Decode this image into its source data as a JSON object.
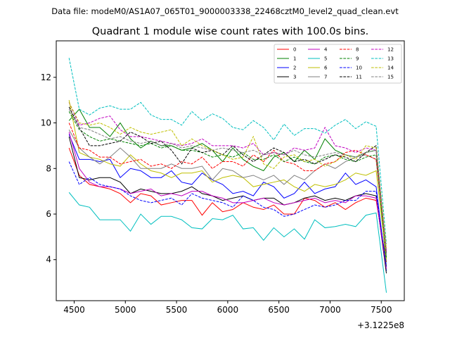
{
  "header": {
    "data_file": "Data file: modeM0/AS1A07_065T01_9000003338_22468cztM0_level2_quad_clean.evt"
  },
  "chart_data": {
    "type": "line",
    "title": "Quadrant 1 module wise count rates with 100.0s bins.",
    "xlabel": "",
    "ylabel": "",
    "offset_label": "+3.1225e8",
    "xlim": [
      4325,
      7725
    ],
    "ylim": [
      2.2,
      13.6
    ],
    "xticks": [
      4500,
      5000,
      5500,
      6000,
      6500,
      7000,
      7500
    ],
    "xtick_labels": [
      "4500",
      "5000",
      "5500",
      "6000",
      "6500",
      "7000",
      "7500"
    ],
    "yticks": [
      4,
      6,
      8,
      10,
      12
    ],
    "ytick_labels": [
      "4",
      "6",
      "8",
      "10",
      "12"
    ],
    "legend_location": "top-right",
    "x": [
      4450,
      4550,
      4650,
      4750,
      4850,
      4950,
      5050,
      5150,
      5250,
      5350,
      5450,
      5550,
      5650,
      5750,
      5850,
      5950,
      6050,
      6150,
      6250,
      6350,
      6450,
      6550,
      6650,
      6750,
      6850,
      6950,
      7050,
      7150,
      7250,
      7350,
      7450,
      7550
    ],
    "series": [
      {
        "name": "0",
        "color": "#ff0000",
        "dash": "solid",
        "values": [
          8.9,
          7.7,
          7.3,
          7.2,
          7.1,
          6.9,
          6.5,
          6.9,
          6.8,
          6.4,
          6.5,
          6.6,
          6.6,
          5.95,
          6.5,
          6.1,
          6.2,
          6.5,
          6.3,
          6.2,
          6.4,
          6.0,
          6.0,
          6.7,
          6.6,
          6.3,
          6.5,
          6.2,
          6.5,
          6.7,
          6.6,
          3.9
        ]
      },
      {
        "name": "1",
        "color": "#008000",
        "dash": "solid",
        "values": [
          10.1,
          10.6,
          9.8,
          9.8,
          9.4,
          10.0,
          9.3,
          8.9,
          9.2,
          9.0,
          9.0,
          8.8,
          8.9,
          9.1,
          8.8,
          8.3,
          8.9,
          8.4,
          8.1,
          7.9,
          8.5,
          8.7,
          8.3,
          8.8,
          8.4,
          9.3,
          8.8,
          8.6,
          8.5,
          8.7,
          8.8,
          3.7
        ]
      },
      {
        "name": "2",
        "color": "#0000ff",
        "dash": "solid",
        "values": [
          9.5,
          8.4,
          8.4,
          8.3,
          8.4,
          7.6,
          8.0,
          7.9,
          7.6,
          7.6,
          7.9,
          7.4,
          7.3,
          7.8,
          7.5,
          7.3,
          6.9,
          7.0,
          6.8,
          7.4,
          7.2,
          6.7,
          6.9,
          7.4,
          6.9,
          7.1,
          7.2,
          7.8,
          7.3,
          7.5,
          7.2,
          3.5
        ]
      },
      {
        "name": "3",
        "color": "#000000",
        "dash": "solid",
        "values": [
          9.4,
          7.6,
          7.5,
          7.6,
          7.6,
          7.4,
          6.9,
          7.1,
          7.0,
          6.9,
          6.9,
          7.0,
          7.2,
          6.9,
          6.8,
          6.6,
          6.7,
          6.8,
          6.6,
          6.7,
          6.7,
          6.4,
          6.5,
          6.7,
          6.8,
          6.6,
          6.7,
          6.6,
          6.8,
          6.9,
          6.8,
          3.4
        ]
      },
      {
        "name": "4",
        "color": "#c000c0",
        "dash": "solid",
        "values": [
          9.6,
          8.0,
          7.4,
          7.2,
          7.2,
          7.1,
          6.9,
          7.0,
          7.1,
          6.8,
          6.9,
          6.8,
          7.0,
          7.0,
          6.8,
          6.7,
          6.5,
          6.5,
          6.6,
          6.7,
          6.5,
          6.4,
          6.5,
          6.6,
          6.7,
          6.5,
          6.6,
          6.5,
          6.8,
          6.8,
          6.7,
          3.6
        ]
      },
      {
        "name": "5",
        "color": "#00bfbf",
        "dash": "solid",
        "values": [
          6.95,
          6.4,
          6.3,
          5.75,
          5.75,
          5.75,
          5.25,
          6.0,
          5.55,
          5.9,
          5.9,
          5.75,
          5.4,
          5.35,
          5.8,
          5.75,
          5.95,
          5.35,
          5.4,
          4.85,
          5.4,
          5.0,
          5.35,
          4.9,
          5.75,
          5.4,
          5.45,
          5.55,
          5.45,
          5.95,
          6.05,
          2.55
        ]
      },
      {
        "name": "6",
        "color": "#bfbf00",
        "dash": "solid",
        "values": [
          11.0,
          8.7,
          8.5,
          8.4,
          8.2,
          8.1,
          8.6,
          8.2,
          7.9,
          7.8,
          7.6,
          7.8,
          7.8,
          7.9,
          7.4,
          7.6,
          7.7,
          7.6,
          7.2,
          7.3,
          7.4,
          7.5,
          7.2,
          7.0,
          7.3,
          7.2,
          7.3,
          7.5,
          7.8,
          7.7,
          7.9,
          4.0
        ]
      },
      {
        "name": "7",
        "color": "#808080",
        "dash": "solid",
        "values": [
          9.7,
          8.9,
          8.5,
          8.2,
          8.5,
          8.9,
          8.5,
          8.0,
          8.0,
          8.0,
          8.2,
          8.0,
          8.0,
          8.1,
          7.5,
          8.0,
          7.9,
          7.6,
          7.7,
          7.5,
          7.7,
          7.3,
          7.7,
          7.5,
          7.9,
          8.2,
          8.0,
          8.3,
          8.5,
          8.6,
          8.4,
          4.2
        ]
      },
      {
        "name": "8",
        "color": "#ff0000",
        "dash": "dashed",
        "values": [
          10.0,
          8.9,
          8.8,
          8.5,
          8.5,
          8.2,
          8.3,
          8.4,
          8.1,
          8.2,
          8.0,
          8.3,
          8.2,
          8.5,
          8.0,
          8.3,
          8.3,
          8.1,
          8.6,
          8.3,
          8.8,
          8.3,
          8.2,
          7.9,
          7.9,
          8.2,
          8.3,
          8.7,
          8.8,
          8.6,
          8.4,
          4.3
        ]
      },
      {
        "name": "9",
        "color": "#008000",
        "dash": "dashed",
        "values": [
          10.5,
          9.7,
          9.4,
          9.2,
          9.3,
          9.2,
          9.1,
          9.0,
          9.1,
          8.9,
          9.0,
          8.8,
          8.8,
          8.7,
          8.5,
          8.6,
          8.5,
          8.7,
          8.4,
          8.4,
          8.6,
          8.3,
          8.5,
          8.3,
          8.2,
          8.5,
          8.6,
          8.4,
          8.3,
          8.5,
          8.6,
          4.1
        ]
      },
      {
        "name": "10",
        "color": "#0000ff",
        "dash": "dashed",
        "values": [
          8.3,
          7.3,
          7.6,
          7.3,
          7.2,
          7.1,
          6.8,
          6.6,
          6.5,
          6.6,
          6.7,
          6.4,
          6.9,
          6.7,
          6.6,
          6.5,
          6.3,
          6.8,
          6.6,
          6.3,
          6.2,
          5.9,
          6.0,
          6.2,
          6.4,
          6.3,
          6.4,
          6.6,
          6.6,
          7.0,
          7.0,
          3.7
        ]
      },
      {
        "name": "11",
        "color": "#000000",
        "dash": "dashed",
        "values": [
          10.7,
          9.8,
          9.0,
          9.0,
          9.1,
          9.2,
          9.6,
          9.4,
          9.1,
          9.2,
          8.8,
          8.2,
          8.9,
          8.7,
          8.8,
          8.6,
          9.0,
          8.6,
          8.3,
          8.6,
          8.9,
          8.7,
          8.3,
          8.4,
          8.2,
          8.4,
          8.6,
          8.5,
          8.3,
          8.7,
          9.0,
          4.3
        ]
      },
      {
        "name": "12",
        "color": "#c000c0",
        "dash": "dashed",
        "values": [
          10.9,
          9.9,
          10.0,
          10.2,
          10.3,
          9.7,
          9.4,
          9.4,
          9.3,
          9.2,
          9.1,
          9.0,
          9.1,
          9.3,
          9.0,
          9.0,
          9.0,
          8.9,
          9.1,
          8.6,
          8.7,
          8.6,
          8.9,
          8.8,
          8.9,
          9.8,
          9.0,
          8.9,
          8.7,
          8.9,
          8.8,
          4.4
        ]
      },
      {
        "name": "13",
        "color": "#00bfbf",
        "dash": "dashed",
        "values": [
          12.85,
          10.6,
          10.35,
          10.65,
          10.75,
          10.6,
          10.6,
          10.9,
          10.35,
          10.15,
          10.15,
          9.9,
          10.5,
          10.1,
          10.4,
          10.2,
          9.8,
          9.7,
          10.1,
          9.8,
          9.25,
          9.95,
          9.45,
          9.75,
          9.75,
          9.55,
          9.9,
          10.15,
          9.75,
          10.05,
          9.85,
          4.7
        ]
      },
      {
        "name": "14",
        "color": "#bfbf00",
        "dash": "dashed",
        "values": [
          10.9,
          10.0,
          9.9,
          10.0,
          9.8,
          9.5,
          9.8,
          9.6,
          9.5,
          9.6,
          9.7,
          9.0,
          9.3,
          9.0,
          8.8,
          8.6,
          8.4,
          8.5,
          9.4,
          8.2,
          8.0,
          8.5,
          8.6,
          8.3,
          8.4,
          8.1,
          8.3,
          8.6,
          8.4,
          9.0,
          8.9,
          4.5
        ]
      },
      {
        "name": "15",
        "color": "#808080",
        "dash": "dashed",
        "values": [
          10.6,
          9.8,
          9.7,
          9.5,
          9.3,
          9.4,
          9.2,
          9.1,
          9.2,
          9.0,
          9.1,
          8.9,
          9.0,
          8.9,
          8.8,
          8.9,
          8.8,
          8.7,
          8.8,
          8.6,
          8.7,
          8.6,
          8.8,
          8.6,
          8.5,
          8.6,
          8.7,
          8.6,
          8.5,
          8.7,
          8.8,
          4.2
        ]
      }
    ]
  }
}
